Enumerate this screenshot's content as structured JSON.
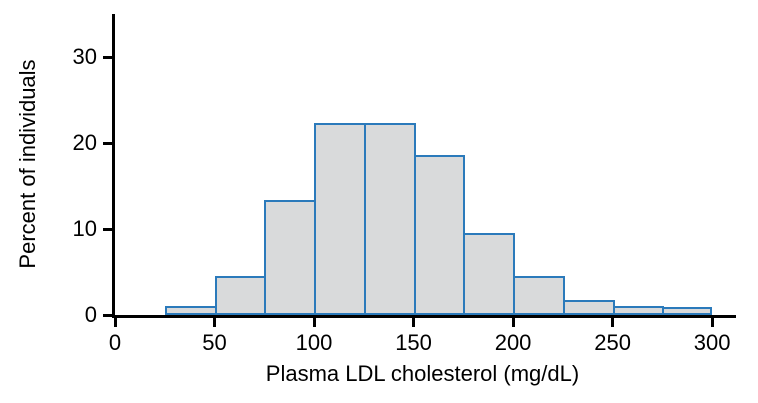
{
  "chart_data": {
    "type": "bar",
    "subtype": "histogram",
    "title": "",
    "xlabel": "Plasma LDL cholesterol (mg/dL)",
    "ylabel": "Percent of individuals",
    "bin_width": 25,
    "bin_starts": [
      25,
      50,
      75,
      100,
      125,
      150,
      175,
      200,
      225,
      250,
      275
    ],
    "values": [
      1.0,
      4.5,
      13.4,
      22.3,
      22.3,
      18.6,
      9.5,
      4.5,
      1.8,
      1.1,
      0.9
    ],
    "x_ticks": [
      0,
      50,
      100,
      150,
      200,
      250,
      300
    ],
    "y_ticks": [
      0,
      10,
      20,
      30
    ],
    "xlim": [
      0,
      312
    ],
    "ylim": [
      0,
      35
    ],
    "grid": false,
    "legend": "none",
    "bar_fill": "#d9dadb",
    "bar_stroke": "#2b7abb",
    "axis_color": "#000000"
  }
}
